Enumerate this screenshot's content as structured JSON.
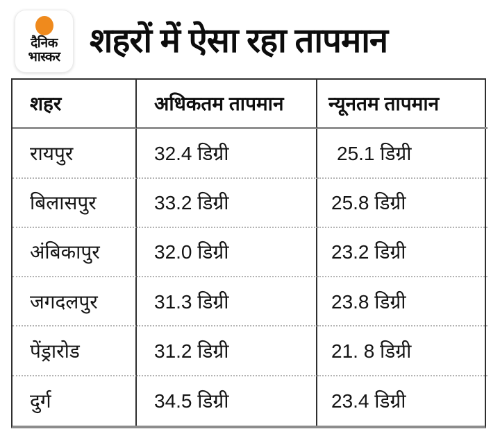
{
  "colors": {
    "background": "#ffffff",
    "logo_circle_orange": "#EF8A1D",
    "text_black": "#0c0c0c",
    "table_border_dark": "#2e2e2e",
    "table_border_gray": "#8c8c8c",
    "row_divider_dotted": "#b3b3b3"
  },
  "logo": {
    "icon": "orange-dot-icon",
    "line1": "दैनिक",
    "line2": "भास्कर"
  },
  "header": {
    "title": "शहरों में ऐसा रहा तापमान"
  },
  "table": {
    "columns": [
      {
        "label": "शहर"
      },
      {
        "label": "अधिकतम तापमान"
      },
      {
        "label": "न्यूनतम तापमान"
      }
    ],
    "rows": [
      {
        "city": "रायपुर",
        "max": "32.4  डिग्री",
        "min": "25.1 डिग्री"
      },
      {
        "city": "बिलासपुर",
        "max": "33.2 डिग्री",
        "min": "25.8 डिग्री"
      },
      {
        "city": "अंबिकापुर",
        "max": "32.0 डिग्री",
        "min": "23.2 डिग्री"
      },
      {
        "city": "जगदलपुर",
        "max": "31.3 डिग्री",
        "min": "23.8 डिग्री"
      },
      {
        "city": "पेंड्रारोड",
        "max": "31.2 डिग्री",
        "min": "21. 8 डिग्री"
      },
      {
        "city": "दुर्ग",
        "max": "34.5 डिग्री",
        "min": "23.4 डिग्री"
      }
    ]
  },
  "chart_data": {
    "type": "table",
    "title": "शहरों में ऐसा रहा तापमान",
    "columns": [
      "शहर",
      "अधिकतम तापमान (डिग्री)",
      "न्यूनतम तापमान (डिग्री)"
    ],
    "rows": [
      [
        "रायपुर",
        32.4,
        25.1
      ],
      [
        "बिलासपुर",
        33.2,
        25.8
      ],
      [
        "अंबिकापुर",
        32.0,
        23.2
      ],
      [
        "जगदलपुर",
        31.3,
        23.8
      ],
      [
        "पेंड्रारोड",
        31.2,
        21.8
      ],
      [
        "दुर्ग",
        34.5,
        23.4
      ]
    ],
    "units": "डिग्री",
    "source_brand": "दैनिक भास्कर"
  }
}
